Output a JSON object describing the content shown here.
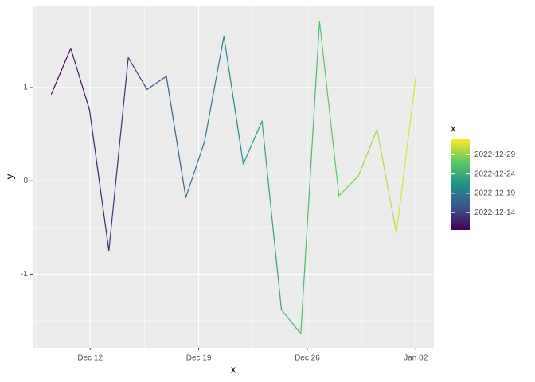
{
  "chart_data": {
    "type": "line",
    "x_label": "x",
    "y_label": "y",
    "legend_title": "x",
    "x": [
      "2022-12-09T12:00",
      "2022-12-10T18:00",
      "2022-12-11T23:00",
      "2022-12-13T05:00",
      "2022-12-14T11:00",
      "2022-12-15T16:00",
      "2022-12-16T22:00",
      "2022-12-18T04:00",
      "2022-12-19T09:00",
      "2022-12-20T15:00",
      "2022-12-21T21:00",
      "2022-12-23T02:00",
      "2022-12-24T08:00",
      "2022-12-25T14:00",
      "2022-12-26T19:00",
      "2022-12-28T01:00",
      "2022-12-29T07:00",
      "2022-12-30T12:00",
      "2022-12-31T18:00",
      "2023-01-02T00:00"
    ],
    "values": [
      0.93,
      1.42,
      0.76,
      -0.75,
      1.32,
      0.98,
      1.12,
      -0.18,
      0.42,
      1.55,
      0.18,
      0.64,
      -1.38,
      -1.64,
      1.71,
      -0.16,
      0.05,
      0.55,
      -0.56,
      1.11
    ],
    "xlim": [
      "2022-12-08T07:00",
      "2023-01-03T04:00"
    ],
    "xticks": [
      {
        "value": "2022-12-12",
        "label": "Dec 12"
      },
      {
        "value": "2022-12-19",
        "label": "Dec 19"
      },
      {
        "value": "2022-12-26",
        "label": "Dec 26"
      },
      {
        "value": "2023-01-02",
        "label": "Jan 02"
      }
    ],
    "xticks_minor": [
      "2022-12-08T12:00",
      "2022-12-15T12:00",
      "2022-12-22T12:00",
      "2022-12-29T12:00"
    ],
    "ylim": [
      -1.79,
      1.87
    ],
    "yticks": [
      -1,
      0,
      1
    ],
    "yticks_minor": [
      -1.5,
      -0.5,
      0.5,
      1.5
    ],
    "grid": true,
    "color_scale": [
      "#440154",
      "#3b528b",
      "#21908c",
      "#5dc863",
      "#fde725"
    ],
    "legend_ticks": [
      {
        "value": "2022-12-14",
        "label": "2022-12-14"
      },
      {
        "value": "2022-12-19",
        "label": "2022-12-19"
      },
      {
        "value": "2022-12-24",
        "label": "2022-12-24"
      },
      {
        "value": "2022-12-29",
        "label": "2022-12-29"
      }
    ]
  }
}
